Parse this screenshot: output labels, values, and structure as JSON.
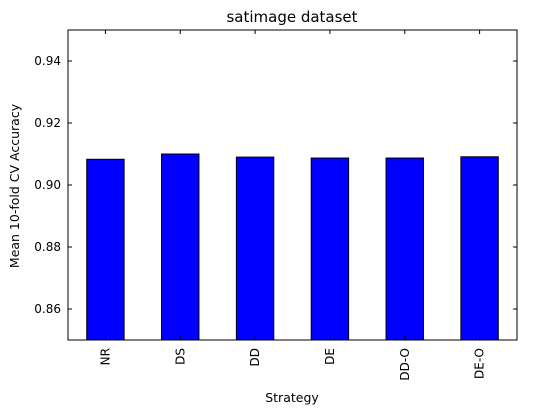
{
  "chart_data": {
    "type": "bar",
    "title": "satimage dataset",
    "xlabel": "Strategy",
    "ylabel": "Mean 10-fold CV Accuracy",
    "categories": [
      "NR",
      "DS",
      "DD",
      "DE",
      "DD-O",
      "DE-O"
    ],
    "values": [
      0.9083,
      0.91,
      0.909,
      0.9087,
      0.9087,
      0.9091
    ],
    "ylim": [
      0.85,
      0.95
    ],
    "yticks": [
      "0.86",
      "0.88",
      "0.90",
      "0.92",
      "0.94"
    ],
    "bar_color": "#0000ff",
    "grid": false,
    "legend": "none"
  }
}
